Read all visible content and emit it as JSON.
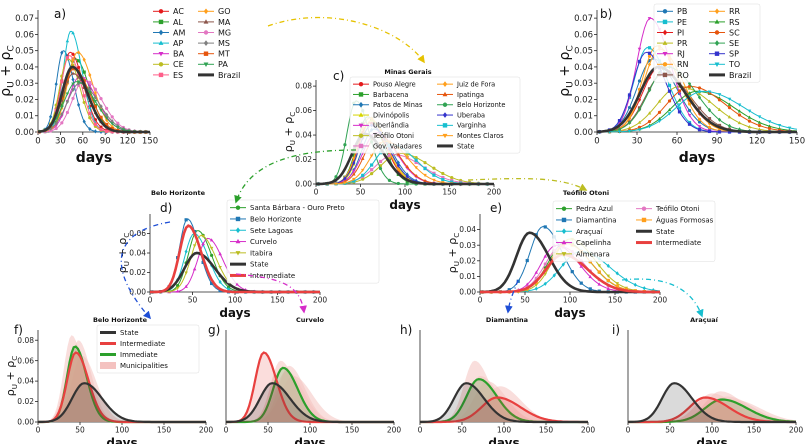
{
  "figure": {
    "ylabel_main": "ρ",
    "ylabel_sub_u": "U",
    "ylabel_plus": " + ρ",
    "ylabel_sub_c": "C",
    "xlabel": "days"
  },
  "colors": {
    "brazil": "#333333",
    "state": "#333333",
    "intermediate": "#e8403f",
    "immediate": "#2ca02c",
    "municipalities": "#f4c2c0"
  },
  "chart_data": [
    {
      "id": "a",
      "panel_label": "a)",
      "type": "line",
      "title": "",
      "xlabel": "days",
      "ylabel": "ρU + ρC",
      "xlim": [
        0,
        150
      ],
      "ylim": [
        0,
        0.075
      ],
      "xticks": [
        "0",
        "30",
        "60",
        "90",
        "120",
        "150"
      ],
      "yticks": [
        "0.00",
        "0.01",
        "0.02",
        "0.03",
        "0.04",
        "0.05",
        "0.06",
        "0.07"
      ],
      "legend": [
        "AC",
        "AL",
        "AM",
        "AP",
        "BA",
        "CE",
        "ES",
        "GO",
        "MA",
        "MG",
        "MS",
        "MT",
        "PA",
        "Brazil"
      ],
      "series": [
        {
          "name": "AC",
          "color": "#e41a1c",
          "peak_day": 43,
          "peak": 0.049,
          "width": 14
        },
        {
          "name": "AL",
          "color": "#2ca02c",
          "peak_day": 50,
          "peak": 0.045,
          "width": 15
        },
        {
          "name": "AM",
          "color": "#1f77b4",
          "peak_day": 34,
          "peak": 0.05,
          "width": 11
        },
        {
          "name": "AP",
          "color": "#17becf",
          "peak_day": 44,
          "peak": 0.062,
          "width": 12
        },
        {
          "name": "BA",
          "color": "#d62dc9",
          "peak_day": 56,
          "peak": 0.034,
          "width": 18
        },
        {
          "name": "CE",
          "color": "#bcbd22",
          "peak_day": 40,
          "peak": 0.045,
          "width": 13
        },
        {
          "name": "ES",
          "color": "#ff5f8a",
          "peak_day": 42,
          "peak": 0.047,
          "width": 13
        },
        {
          "name": "GO",
          "color": "#ff9f1c",
          "peak_day": 53,
          "peak": 0.049,
          "width": 16
        },
        {
          "name": "MA",
          "color": "#8c564b",
          "peak_day": 47,
          "peak": 0.036,
          "width": 16
        },
        {
          "name": "MG",
          "color": "#e377c2",
          "peak_day": 62,
          "peak": 0.032,
          "width": 19
        },
        {
          "name": "MS",
          "color": "#7f7f7f",
          "peak_day": 56,
          "peak": 0.03,
          "width": 20
        },
        {
          "name": "MT",
          "color": "#e6550d",
          "peak_day": 48,
          "peak": 0.039,
          "width": 17
        },
        {
          "name": "PA",
          "color": "#31a354",
          "peak_day": 52,
          "peak": 0.031,
          "width": 20
        },
        {
          "name": "Brazil",
          "color": "#333333",
          "peak_day": 46,
          "peak": 0.04,
          "width": 16,
          "thick": true
        }
      ]
    },
    {
      "id": "b",
      "panel_label": "b)",
      "type": "line",
      "title": "",
      "xlabel": "days",
      "ylabel": "ρU + ρC",
      "xlim": [
        0,
        150
      ],
      "ylim": [
        0,
        0.075
      ],
      "xticks": [
        "0",
        "30",
        "60",
        "90",
        "120",
        "150"
      ],
      "yticks": [
        "0.00",
        "0.01",
        "0.02",
        "0.03",
        "0.04",
        "0.05",
        "0.06",
        "0.07"
      ],
      "legend": [
        "PB",
        "PE",
        "PI",
        "PR",
        "RJ",
        "RN",
        "RO",
        "RR",
        "RS",
        "SC",
        "SE",
        "SP",
        "TO",
        "Brazil"
      ],
      "series": [
        {
          "name": "PB",
          "color": "#1f77b4",
          "peak_day": 42,
          "peak": 0.045,
          "width": 14
        },
        {
          "name": "PE",
          "color": "#17becf",
          "peak_day": 38,
          "peak": 0.052,
          "width": 12
        },
        {
          "name": "PI",
          "color": "#e41a1c",
          "peak_day": 47,
          "peak": 0.04,
          "width": 15
        },
        {
          "name": "PR",
          "color": "#bcbd22",
          "peak_day": 62,
          "peak": 0.028,
          "width": 20
        },
        {
          "name": "RJ",
          "color": "#d62dc9",
          "peak_day": 40,
          "peak": 0.07,
          "width": 12
        },
        {
          "name": "RN",
          "color": "#ff9f1c",
          "peak_day": 45,
          "peak": 0.053,
          "width": 13
        },
        {
          "name": "RO",
          "color": "#8c564b",
          "peak_day": 50,
          "peak": 0.036,
          "width": 16
        },
        {
          "name": "RR",
          "color": "#ff9f1c",
          "peak_day": 47,
          "peak": 0.051,
          "width": 14
        },
        {
          "name": "RS",
          "color": "#2ca02c",
          "peak_day": 75,
          "peak": 0.025,
          "width": 22
        },
        {
          "name": "SC",
          "color": "#e6550d",
          "peak_day": 70,
          "peak": 0.028,
          "width": 21
        },
        {
          "name": "SE",
          "color": "#31a354",
          "peak_day": 53,
          "peak": 0.04,
          "width": 17
        },
        {
          "name": "SP",
          "color": "#3333cc",
          "peak_day": 37,
          "peak": 0.049,
          "width": 12
        },
        {
          "name": "TO",
          "color": "#17becf",
          "peak_day": 80,
          "peak": 0.025,
          "width": 24
        },
        {
          "name": "Brazil",
          "color": "#333333",
          "peak_day": 46,
          "peak": 0.04,
          "width": 16,
          "thick": true
        }
      ]
    },
    {
      "id": "c",
      "panel_label": "c)",
      "type": "line",
      "title": "Minas Gerais",
      "xlabel": "days",
      "ylabel": "ρU + ρC",
      "xlim": [
        0,
        200
      ],
      "ylim": [
        0,
        0.085
      ],
      "xticks": [
        "0",
        "50",
        "100",
        "150",
        "200"
      ],
      "yticks": [
        "0.00",
        "0.02",
        "0.04",
        "0.06",
        "0.08"
      ],
      "legend": [
        "Pouso Alegre",
        "Barbacena",
        "Patos de Minas",
        "Divinópolis",
        "Uberlândia",
        "Teófilo Otoni",
        "Gov. Valadares",
        "Juiz de Fora",
        "Ipatinga",
        "Belo Horizonte",
        "Uberaba",
        "Varginha",
        "Montes Claros",
        "State"
      ],
      "series": [
        {
          "name": "Pouso Alegre",
          "color": "#e41a1c",
          "peak_day": 60,
          "peak": 0.05,
          "width": 15
        },
        {
          "name": "Barbacena",
          "color": "#2ca02c",
          "peak_day": 58,
          "peak": 0.055,
          "width": 14
        },
        {
          "name": "Patos de Minas",
          "color": "#1f77b4",
          "peak_day": 65,
          "peak": 0.045,
          "width": 16
        },
        {
          "name": "Divinópolis",
          "color": "#d6d600",
          "peak_day": 62,
          "peak": 0.052,
          "width": 15
        },
        {
          "name": "Uberlândia",
          "color": "#d62dc9",
          "peak_day": 68,
          "peak": 0.042,
          "width": 18
        },
        {
          "name": "Teófilo Otoni",
          "color": "#bcbd22",
          "peak_day": 95,
          "peak": 0.025,
          "width": 26
        },
        {
          "name": "Gov. Valadares",
          "color": "#e377c2",
          "peak_day": 88,
          "peak": 0.024,
          "width": 25
        },
        {
          "name": "Juiz de Fora",
          "color": "#ff9f1c",
          "peak_day": 60,
          "peak": 0.054,
          "width": 15
        },
        {
          "name": "Ipatinga",
          "color": "#e6550d",
          "peak_day": 70,
          "peak": 0.04,
          "width": 18
        },
        {
          "name": "Belo Horizonte",
          "color": "#31a354",
          "peak_day": 45,
          "peak": 0.068,
          "width": 12
        },
        {
          "name": "Uberaba",
          "color": "#3333cc",
          "peak_day": 62,
          "peak": 0.048,
          "width": 16
        },
        {
          "name": "Varginha",
          "color": "#17becf",
          "peak_day": 85,
          "peak": 0.032,
          "width": 22
        },
        {
          "name": "Montes Claros",
          "color": "#ff9f1c",
          "peak_day": 78,
          "peak": 0.035,
          "width": 20
        },
        {
          "name": "State",
          "color": "#333333",
          "peak_day": 55,
          "peak": 0.041,
          "width": 17,
          "thick": true
        }
      ]
    },
    {
      "id": "d",
      "panel_label": "d)",
      "type": "line",
      "title": "Belo Horizonte",
      "xlabel": "days",
      "ylabel": "ρU + ρC",
      "xlim": [
        0,
        200
      ],
      "ylim": [
        0,
        0.08
      ],
      "xticks": [
        "0",
        "50",
        "100",
        "150",
        "200"
      ],
      "yticks": [
        "0.00",
        "0.02",
        "0.04",
        "0.06"
      ],
      "legend": [
        "Santa Bárbara - Ouro Preto",
        "Belo Horizonte",
        "Sete Lagoas",
        "Curvelo",
        "Itabira",
        "State",
        "Intermediate"
      ],
      "series": [
        {
          "name": "Santa Bárbara - Ouro Preto",
          "color": "#2ca02c",
          "peak_day": 56,
          "peak": 0.063,
          "width": 13
        },
        {
          "name": "Belo Horizonte",
          "color": "#1f77b4",
          "peak_day": 44,
          "peak": 0.075,
          "width": 11
        },
        {
          "name": "Sete Lagoas",
          "color": "#17becf",
          "peak_day": 52,
          "peak": 0.06,
          "width": 13
        },
        {
          "name": "Curvelo",
          "color": "#d62dc9",
          "peak_day": 68,
          "peak": 0.055,
          "width": 14
        },
        {
          "name": "Itabira",
          "color": "#bcbd22",
          "peak_day": 60,
          "peak": 0.058,
          "width": 14
        },
        {
          "name": "State",
          "color": "#333333",
          "peak_day": 55,
          "peak": 0.04,
          "width": 17,
          "thick": true
        },
        {
          "name": "Intermediate",
          "color": "#e8403f",
          "peak_day": 45,
          "peak": 0.068,
          "width": 12,
          "thick": true
        }
      ]
    },
    {
      "id": "e",
      "panel_label": "e)",
      "type": "line",
      "title": "Teófilo Otoni",
      "xlabel": "days",
      "ylabel": "ρU + ρC",
      "xlim": [
        0,
        200
      ],
      "ylim": [
        0,
        0.05
      ],
      "xticks": [
        "0",
        "50",
        "100",
        "150",
        "200"
      ],
      "yticks": [
        "0.00",
        "0.01",
        "0.02",
        "0.03",
        "0.04"
      ],
      "legend": [
        "Pedra Azul",
        "Diamantina",
        "Araçuaí",
        "Capelinha",
        "Almenara",
        "Teófilo Otoni",
        "Águas Formosas",
        "State",
        "Intermediate"
      ],
      "series": [
        {
          "name": "Pedra Azul",
          "color": "#2ca02c",
          "peak_day": 95,
          "peak": 0.032,
          "width": 22
        },
        {
          "name": "Diamantina",
          "color": "#1f77b4",
          "peak_day": 70,
          "peak": 0.042,
          "width": 17
        },
        {
          "name": "Araçuaí",
          "color": "#17becf",
          "peak_day": 112,
          "peak": 0.026,
          "width": 26
        },
        {
          "name": "Capelinha",
          "color": "#d62dc9",
          "peak_day": 85,
          "peak": 0.03,
          "width": 20
        },
        {
          "name": "Almenara",
          "color": "#bcbd22",
          "peak_day": 100,
          "peak": 0.034,
          "width": 22
        },
        {
          "name": "Teófilo Otoni",
          "color": "#e377c2",
          "peak_day": 90,
          "peak": 0.029,
          "width": 21
        },
        {
          "name": "Águas Formosas",
          "color": "#ff9f1c",
          "peak_day": 96,
          "peak": 0.031,
          "width": 22
        },
        {
          "name": "State",
          "color": "#333333",
          "peak_day": 55,
          "peak": 0.038,
          "width": 17,
          "thick": true
        },
        {
          "name": "Intermediate",
          "color": "#e8403f",
          "peak_day": 92,
          "peak": 0.024,
          "width": 22,
          "thick": true
        }
      ]
    },
    {
      "id": "f",
      "panel_label": "f)",
      "type": "area",
      "title": "Belo Horizonte",
      "xlabel": "days",
      "ylabel": "ρU + ρC",
      "xlim": [
        0,
        200
      ],
      "ylim": [
        0,
        0.09
      ],
      "xticks": [
        "0",
        "50",
        "100",
        "150",
        "200"
      ],
      "yticks": [
        "0.00",
        "0.02",
        "0.04",
        "0.06",
        "0.08"
      ],
      "legend": [
        "State",
        "Intermediate",
        "Immediate",
        "Municipalities"
      ],
      "series": [
        {
          "name": "State",
          "peak_day": 55,
          "peak": 0.038,
          "width": 17
        },
        {
          "name": "Intermediate",
          "peak_day": 45,
          "peak": 0.068,
          "width": 12
        },
        {
          "name": "Immediate",
          "peak_day": 44,
          "peak": 0.074,
          "width": 11
        },
        {
          "name": "Municipalities",
          "peaks": [
            [
              40,
              0.085,
              11
            ],
            [
              48,
              0.08,
              12
            ],
            [
              52,
              0.065,
              14
            ],
            [
              44,
              0.072,
              13
            ]
          ]
        }
      ]
    },
    {
      "id": "g",
      "panel_label": "g)",
      "type": "area",
      "title": "Curvelo",
      "xlabel": "days",
      "ylabel": "",
      "xlim": [
        0,
        200
      ],
      "ylim": [
        0,
        0.09
      ],
      "xticks": [
        "0",
        "50",
        "100",
        "150",
        "200"
      ],
      "yticks": [],
      "series": [
        {
          "name": "State",
          "peak_day": 55,
          "peak": 0.038,
          "width": 17
        },
        {
          "name": "Intermediate",
          "peak_day": 45,
          "peak": 0.068,
          "width": 12
        },
        {
          "name": "Immediate",
          "peak_day": 68,
          "peak": 0.053,
          "width": 14
        },
        {
          "name": "Municipalities",
          "peaks": [
            [
              65,
              0.06,
              14
            ],
            [
              72,
              0.05,
              16
            ],
            [
              80,
              0.045,
              18
            ],
            [
              75,
              0.055,
              15
            ]
          ]
        }
      ]
    },
    {
      "id": "h",
      "panel_label": "h)",
      "type": "area",
      "title": "Diamantina",
      "xlabel": "days",
      "ylabel": "",
      "xlim": [
        0,
        200
      ],
      "ylim": [
        0,
        0.09
      ],
      "xticks": [
        "0",
        "50",
        "100",
        "150",
        "200"
      ],
      "yticks": [],
      "series": [
        {
          "name": "State",
          "peak_day": 55,
          "peak": 0.038,
          "width": 17
        },
        {
          "name": "Intermediate",
          "peak_day": 92,
          "peak": 0.024,
          "width": 22
        },
        {
          "name": "Immediate",
          "peak_day": 70,
          "peak": 0.042,
          "width": 17
        },
        {
          "name": "Municipalities",
          "peaks": [
            [
              65,
              0.06,
              15
            ],
            [
              72,
              0.045,
              17
            ],
            [
              95,
              0.035,
              20
            ],
            [
              80,
              0.04,
              18
            ]
          ]
        }
      ]
    },
    {
      "id": "i",
      "panel_label": "i)",
      "type": "area",
      "title": "Araçuaí",
      "xlabel": "days",
      "ylabel": "",
      "xlim": [
        0,
        200
      ],
      "ylim": [
        0,
        0.09
      ],
      "xticks": [
        "0",
        "50",
        "100",
        "150",
        "200"
      ],
      "yticks": [],
      "series": [
        {
          "name": "State",
          "peak_day": 55,
          "peak": 0.038,
          "width": 17
        },
        {
          "name": "Intermediate",
          "peak_day": 92,
          "peak": 0.024,
          "width": 22
        },
        {
          "name": "Immediate",
          "peak_day": 112,
          "peak": 0.022,
          "width": 24
        },
        {
          "name": "Municipalities",
          "peaks": [
            [
              110,
              0.03,
              22
            ],
            [
              118,
              0.025,
              24
            ],
            [
              100,
              0.028,
              22
            ],
            [
              125,
              0.022,
              26
            ]
          ]
        }
      ]
    }
  ]
}
